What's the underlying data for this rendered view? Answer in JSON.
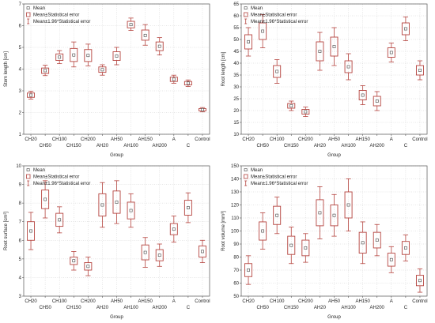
{
  "chart_data": [
    {
      "type": "box",
      "ylabel": "Stem length [cm]",
      "xlabel": "Group",
      "ylim": [
        1,
        7
      ],
      "yticks": [
        1,
        2,
        3,
        4,
        5,
        6,
        7
      ],
      "legend": {
        "placement": "top-left",
        "entries": [
          "Mean",
          "Mean±Statistical error",
          "Mean±1.96*Statistical error"
        ]
      },
      "categories": [
        "CH20",
        "CH50",
        "CH100",
        "CH150",
        "CH200",
        "AH20",
        "AH50",
        "AH100",
        "AH150",
        "AH200",
        "A",
        "C",
        "Control"
      ],
      "mean": [
        2.8,
        3.93,
        4.55,
        4.65,
        4.63,
        3.97,
        4.6,
        6.05,
        5.55,
        5.05,
        3.53,
        3.35,
        2.13
      ],
      "se_low": [
        2.7,
        3.8,
        4.4,
        4.35,
        4.35,
        3.85,
        4.4,
        5.9,
        5.33,
        4.85,
        3.43,
        3.27,
        2.08
      ],
      "se_high": [
        2.9,
        4.05,
        4.7,
        4.95,
        4.9,
        4.1,
        4.8,
        6.2,
        5.8,
        5.25,
        3.63,
        3.43,
        2.18
      ],
      "ci_low": [
        2.62,
        3.7,
        4.25,
        4.1,
        4.15,
        3.72,
        4.2,
        5.78,
        5.1,
        4.65,
        3.35,
        3.2,
        2.03
      ],
      "ci_high": [
        2.98,
        4.18,
        4.85,
        5.25,
        5.15,
        4.2,
        5.0,
        6.35,
        6.05,
        5.45,
        3.72,
        3.5,
        2.23
      ]
    },
    {
      "type": "box",
      "ylabel": "Root length [cm]",
      "xlabel": "Group",
      "ylim": [
        10,
        65
      ],
      "yticks": [
        10,
        15,
        20,
        25,
        30,
        35,
        40,
        45,
        50,
        55,
        60,
        65
      ],
      "legend": {
        "placement": "top-left",
        "entries": [
          "Mean",
          "Mean±Statistical error",
          "Mean±1.96*Statistical error"
        ]
      },
      "categories": [
        "CH20",
        "CH50",
        "CH100",
        "CH150",
        "CH200",
        "AH20",
        "AH50",
        "AH100",
        "AH150",
        "AH200",
        "A",
        "C",
        "Control"
      ],
      "mean": [
        49,
        53.5,
        36.5,
        22,
        19.5,
        45,
        47,
        38.5,
        26.5,
        24,
        44.5,
        54.5,
        37
      ],
      "se_low": [
        46,
        50,
        34,
        21,
        18.5,
        41,
        43,
        36,
        24.5,
        22,
        42.5,
        52,
        35
      ],
      "se_high": [
        52,
        57,
        39,
        23,
        20.5,
        49,
        51,
        41,
        28.5,
        26,
        46.5,
        57,
        39
      ],
      "ci_low": [
        43,
        46.5,
        31.5,
        20,
        17.5,
        37,
        39,
        33,
        22.5,
        20,
        40.5,
        49.5,
        33
      ],
      "ci_high": [
        55,
        60.5,
        41.5,
        24,
        21.5,
        53,
        55,
        44,
        30.5,
        28,
        48.5,
        59.5,
        41
      ]
    },
    {
      "type": "box",
      "ylabel": "Root surface [cm²]",
      "xlabel": "Group",
      "ylim": [
        3,
        10
      ],
      "yticks": [
        3,
        4,
        5,
        6,
        7,
        8,
        9,
        10
      ],
      "legend": {
        "placement": "top-left",
        "entries": [
          "Mean",
          "Mean±Statistical error",
          "Mean±1.96*Statistical error"
        ]
      },
      "categories": [
        "CH20",
        "CH50",
        "CH100",
        "CH150",
        "CH200",
        "AH20",
        "AH50",
        "AH100",
        "AH150",
        "AH200",
        "A",
        "C",
        "Control"
      ],
      "mean": [
        6.5,
        8.2,
        7.1,
        4.9,
        4.6,
        7.9,
        8.05,
        7.6,
        5.35,
        5.2,
        6.6,
        7.75,
        5.4
      ],
      "se_low": [
        6.0,
        7.7,
        6.75,
        4.7,
        4.4,
        7.3,
        7.45,
        7.15,
        4.95,
        4.9,
        6.3,
        7.35,
        5.1
      ],
      "se_high": [
        7.0,
        8.7,
        7.45,
        5.1,
        4.8,
        8.5,
        8.65,
        8.05,
        5.75,
        5.5,
        6.9,
        8.15,
        5.7
      ],
      "ci_low": [
        5.5,
        7.2,
        6.4,
        4.4,
        4.1,
        6.7,
        6.9,
        6.7,
        4.55,
        4.6,
        5.9,
        6.95,
        4.8
      ],
      "ci_high": [
        7.5,
        9.2,
        7.8,
        5.4,
        5.1,
        9.1,
        9.2,
        8.5,
        6.15,
        5.8,
        7.3,
        8.55,
        6.0
      ]
    },
    {
      "type": "box",
      "ylabel": "Root volume [mm³]",
      "xlabel": "Group",
      "ylim": [
        50,
        150
      ],
      "yticks": [
        50,
        60,
        70,
        80,
        90,
        100,
        110,
        120,
        130,
        140,
        150
      ],
      "legend": {
        "placement": "top-left",
        "entries": [
          "Mean",
          "Mean±Statistical error",
          "Mean±1.96*Statistical error"
        ]
      },
      "categories": [
        "CH20",
        "CH50",
        "CH100",
        "CH150",
        "CH200",
        "AH20",
        "AH50",
        "AH100",
        "AH150",
        "AH200",
        "A",
        "C",
        "Control"
      ],
      "mean": [
        70,
        100,
        112,
        89,
        87,
        114,
        112,
        120,
        91,
        93,
        78,
        87,
        62
      ],
      "se_low": [
        65,
        93,
        105,
        82,
        81,
        104,
        104,
        110,
        83,
        87,
        73,
        82,
        58
      ],
      "se_high": [
        75,
        107,
        119,
        96,
        93,
        124,
        120,
        130,
        99,
        99,
        83,
        92,
        66
      ],
      "ci_low": [
        59,
        86,
        98,
        75,
        76,
        94,
        96,
        100,
        75,
        81,
        68,
        77,
        53
      ],
      "ci_high": [
        81,
        114,
        126,
        103,
        98,
        134,
        128,
        140,
        107,
        105,
        88,
        97,
        71
      ]
    }
  ]
}
